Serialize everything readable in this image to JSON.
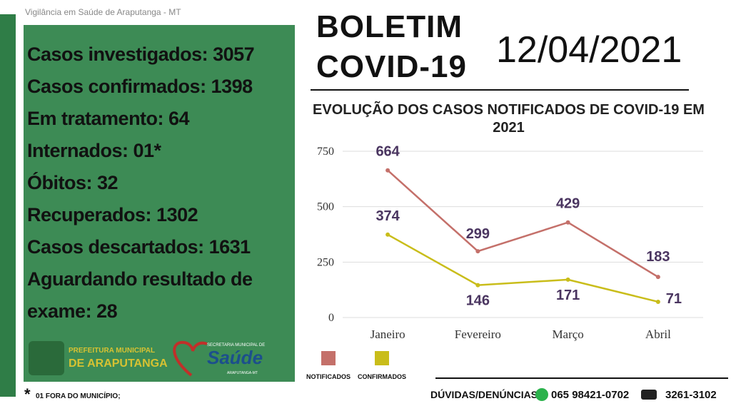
{
  "header": {
    "source": "Vigilância em Saúde de Araputanga - MT",
    "title": "BOLETIM COVID-19",
    "date": "12/04/2021"
  },
  "stats": [
    "Casos investigados: 3057",
    "Casos confirmados: 1398",
    "Em tratamento: 64",
    "Internados: 01*",
    "Óbitos: 32",
    "Recuperados: 1302",
    "Casos descartados: 1631",
    "Aguardando resultado de exame: 28"
  ],
  "logos": {
    "prefeitura": [
      "PREFEITURA MUNICIPAL",
      "DE ARAPUTANGA"
    ],
    "secretaria": [
      "SECRETARIA MUNICIPAL DE",
      "Saúde",
      "ARAPUTANGA-MT"
    ]
  },
  "footnote": {
    "mark": "*",
    "text": "01 FORA DO MUNICÍPIO;"
  },
  "contact": {
    "label": "DÚVIDAS/DENÚNCIAS:",
    "whatsapp": "065 98421-0702",
    "phone": "3261-3102"
  },
  "chart_data": {
    "type": "line",
    "title": "EVOLUÇÃO DOS CASOS NOTIFICADOS  DE COVID-19 EM 2021",
    "categories": [
      "Janeiro",
      "Fevereiro",
      "Março",
      "Abril"
    ],
    "series": [
      {
        "name": "NOTIFICADOS",
        "color": "#c4706a",
        "values": [
          664,
          299,
          429,
          183
        ]
      },
      {
        "name": "CONFIRMADOS",
        "color": "#c9bd1a",
        "values": [
          374,
          146,
          171,
          71
        ]
      }
    ],
    "ylim": [
      0,
      750
    ],
    "yticks": [
      0,
      250,
      500,
      750
    ],
    "grid": true
  }
}
